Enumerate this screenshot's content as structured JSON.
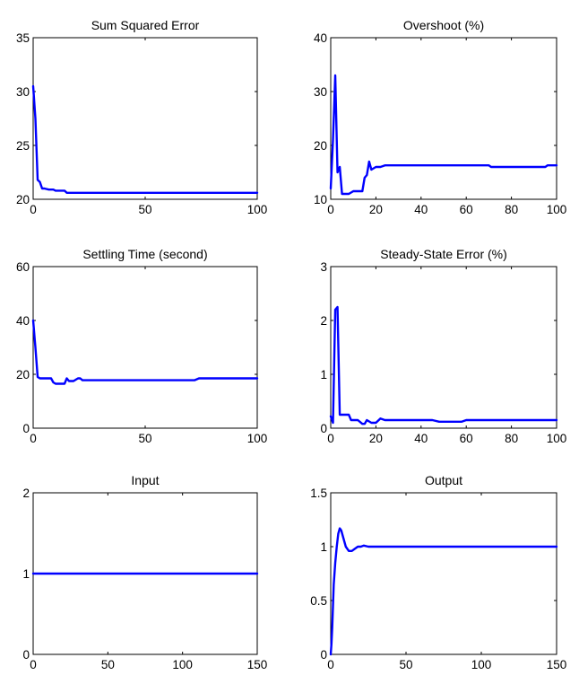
{
  "figure": {
    "line_color": "#0000ff",
    "axis_color": "#000000",
    "background": "#ffffff"
  },
  "chart_data": [
    {
      "type": "line",
      "title": "Sum Squared Error",
      "xlabel": "",
      "ylabel": "",
      "xlim": [
        0,
        100
      ],
      "ylim": [
        20,
        35
      ],
      "xticks": [
        0,
        50,
        100
      ],
      "yticks": [
        20,
        25,
        30,
        35
      ],
      "grid": false,
      "series": [
        {
          "x": [
            0,
            1,
            2,
            3,
            4,
            5,
            7,
            9,
            10,
            12,
            14,
            15,
            20,
            40,
            60,
            80,
            100
          ],
          "y": [
            30.5,
            27.5,
            21.8,
            21.6,
            21.0,
            21.0,
            20.9,
            20.9,
            20.8,
            20.8,
            20.8,
            20.6,
            20.6,
            20.6,
            20.6,
            20.6,
            20.6
          ]
        }
      ]
    },
    {
      "type": "line",
      "title": "Overshoot (%)",
      "xlabel": "",
      "ylabel": "",
      "xlim": [
        0,
        100
      ],
      "ylim": [
        10,
        40
      ],
      "xticks": [
        0,
        20,
        40,
        60,
        80,
        100
      ],
      "yticks": [
        10,
        20,
        30,
        40
      ],
      "grid": false,
      "series": [
        {
          "x": [
            0,
            1,
            2,
            3,
            4,
            5,
            6,
            8,
            10,
            12,
            14,
            15,
            16,
            17,
            18,
            20,
            22,
            24,
            30,
            50,
            70,
            71,
            80,
            90,
            95,
            96,
            100
          ],
          "y": [
            12,
            21,
            33,
            15,
            16,
            11,
            11,
            11,
            11.5,
            11.5,
            11.5,
            14,
            14.5,
            17,
            15.5,
            16,
            16,
            16.3,
            16.3,
            16.3,
            16.3,
            16,
            16,
            16,
            16,
            16.3,
            16.3
          ]
        }
      ]
    },
    {
      "type": "line",
      "title": "Settling Time (second)",
      "xlabel": "",
      "ylabel": "",
      "xlim": [
        0,
        100
      ],
      "ylim": [
        0,
        60
      ],
      "xticks": [
        0,
        50,
        100
      ],
      "yticks": [
        0,
        20,
        40,
        60
      ],
      "grid": false,
      "series": [
        {
          "x": [
            0,
            1,
            2,
            3,
            4,
            6,
            8,
            9,
            10,
            12,
            14,
            15,
            16,
            18,
            20,
            21,
            22,
            23,
            30,
            50,
            72,
            74,
            80,
            90,
            100
          ],
          "y": [
            40,
            30,
            19,
            18.5,
            18.5,
            18.5,
            18.5,
            17,
            16.5,
            16.5,
            16.5,
            18.5,
            17.5,
            17.5,
            18.5,
            18.5,
            17.8,
            17.8,
            17.8,
            17.8,
            17.8,
            18.5,
            18.5,
            18.5,
            18.5
          ]
        }
      ]
    },
    {
      "type": "line",
      "title": "Steady-State Error (%)",
      "xlabel": "",
      "ylabel": "",
      "xlim": [
        0,
        100
      ],
      "ylim": [
        0,
        3
      ],
      "xticks": [
        0,
        20,
        40,
        60,
        80,
        100
      ],
      "yticks": [
        0,
        1,
        2,
        3
      ],
      "grid": false,
      "series": [
        {
          "x": [
            0,
            1,
            2,
            3,
            4,
            5,
            6,
            8,
            9,
            10,
            12,
            14,
            15,
            16,
            18,
            20,
            22,
            24,
            30,
            40,
            45,
            48,
            55,
            58,
            60,
            70,
            80,
            100
          ],
          "y": [
            0.22,
            0.1,
            2.2,
            2.25,
            0.25,
            0.25,
            0.25,
            0.25,
            0.15,
            0.15,
            0.15,
            0.08,
            0.08,
            0.15,
            0.1,
            0.1,
            0.18,
            0.15,
            0.15,
            0.15,
            0.15,
            0.12,
            0.12,
            0.12,
            0.15,
            0.15,
            0.15,
            0.15
          ]
        }
      ]
    },
    {
      "type": "line",
      "title": "Input",
      "xlabel": "",
      "ylabel": "",
      "xlim": [
        0,
        150
      ],
      "ylim": [
        0,
        2
      ],
      "xticks": [
        0,
        50,
        100,
        150
      ],
      "yticks": [
        0,
        1,
        2
      ],
      "grid": false,
      "series": [
        {
          "x": [
            0,
            150
          ],
          "y": [
            1,
            1
          ]
        }
      ]
    },
    {
      "type": "line",
      "title": "Output",
      "xlabel": "",
      "ylabel": "",
      "xlim": [
        0,
        150
      ],
      "ylim": [
        0,
        1.5
      ],
      "xticks": [
        0,
        50,
        100,
        150
      ],
      "yticks": [
        0,
        0.5,
        1,
        1.5
      ],
      "grid": false,
      "series": [
        {
          "x": [
            0,
            0.5,
            1,
            1.5,
            2,
            3,
            4,
            5,
            6,
            7,
            8,
            9,
            10,
            12,
            14,
            16,
            18,
            20,
            22,
            25,
            30,
            32,
            35,
            40,
            60,
            100,
            150
          ],
          "y": [
            0,
            0.1,
            0.25,
            0.45,
            0.65,
            0.85,
            1.0,
            1.12,
            1.17,
            1.15,
            1.1,
            1.05,
            1.0,
            0.96,
            0.96,
            0.98,
            1.0,
            1.0,
            1.01,
            1.0,
            1.0,
            1.0,
            1.0,
            1.0,
            1.0,
            1.0,
            1.0
          ]
        }
      ]
    }
  ]
}
